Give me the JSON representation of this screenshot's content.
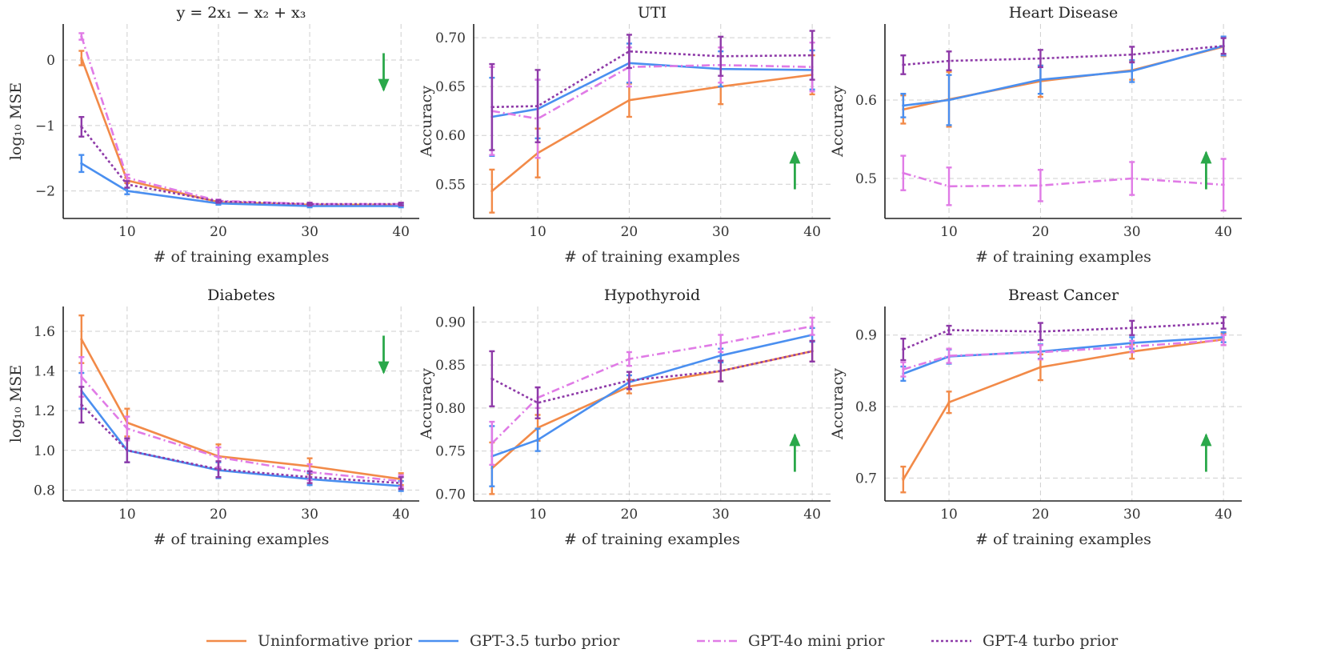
{
  "colors": {
    "uninformative": "#f28a48",
    "gpt35": "#4a8ff0",
    "gpt4omini": "#e07be6",
    "gpt4turbo": "#8e3aa8",
    "arrow": "#2aa84a"
  },
  "legend": [
    {
      "key": "uninformative",
      "label": "Uninformative prior",
      "dash": "solid"
    },
    {
      "key": "gpt35",
      "label": "GPT-3.5 turbo prior",
      "dash": "solid"
    },
    {
      "key": "gpt4omini",
      "label": "GPT-4o mini prior",
      "dash": "dashdot"
    },
    {
      "key": "gpt4turbo",
      "label": "GPT-4 turbo prior",
      "dash": "dotted"
    }
  ],
  "chart_data": [
    {
      "type": "line",
      "title": "y = 2x₁ − x₂ + x₃",
      "xlabel": "# of training examples",
      "ylabel": "log₁₀ MSE",
      "x": [
        5,
        10,
        20,
        30,
        40
      ],
      "xticks": [
        10,
        20,
        30,
        40
      ],
      "xticklabels": [
        "10",
        "20",
        "30",
        "40"
      ],
      "xlim": [
        3,
        42
      ],
      "ylim": [
        -2.42,
        0.55
      ],
      "yticks": [
        0,
        -1,
        -2
      ],
      "yticklabels": [
        "0",
        "−1",
        "−2"
      ],
      "arrow": "down",
      "series": [
        {
          "key": "uninformative",
          "values": [
            0.03,
            -1.84,
            -2.17,
            -2.21,
            -2.21
          ],
          "err": [
            0.11,
            0.04,
            0.02,
            0.02,
            0.02
          ]
        },
        {
          "key": "gpt35",
          "values": [
            -1.58,
            -2.0,
            -2.19,
            -2.23,
            -2.23
          ],
          "err": [
            0.13,
            0.05,
            0.02,
            0.02,
            0.02
          ]
        },
        {
          "key": "gpt4omini",
          "values": [
            0.36,
            -1.8,
            -2.15,
            -2.2,
            -2.2
          ],
          "err": [
            0.05,
            0.05,
            0.02,
            0.02,
            0.02
          ]
        },
        {
          "key": "gpt4turbo",
          "values": [
            -1.02,
            -1.9,
            -2.16,
            -2.2,
            -2.2
          ],
          "err": [
            0.15,
            0.05,
            0.02,
            0.02,
            0.02
          ]
        }
      ]
    },
    {
      "type": "line",
      "title": "UTI",
      "xlabel": "# of training examples",
      "ylabel": "Accuracy",
      "x": [
        5,
        10,
        20,
        30,
        40
      ],
      "xticks": [
        10,
        20,
        30,
        40
      ],
      "xticklabels": [
        "10",
        "20",
        "30",
        "40"
      ],
      "xlim": [
        3,
        42
      ],
      "ylim": [
        0.515,
        0.714
      ],
      "yticks": [
        0.55,
        0.6,
        0.65,
        0.7
      ],
      "yticklabels": [
        "0.55",
        "0.60",
        "0.65",
        "0.70"
      ],
      "arrow": "up",
      "series": [
        {
          "key": "uninformative",
          "values": [
            0.543,
            0.582,
            0.636,
            0.65,
            0.662
          ],
          "err": [
            0.022,
            0.025,
            0.017,
            0.018,
            0.02
          ]
        },
        {
          "key": "gpt35",
          "values": [
            0.619,
            0.627,
            0.674,
            0.668,
            0.667
          ],
          "err": [
            0.04,
            0.03,
            0.02,
            0.018,
            0.02
          ]
        },
        {
          "key": "gpt4omini",
          "values": [
            0.625,
            0.617,
            0.67,
            0.672,
            0.67
          ],
          "err": [
            0.045,
            0.04,
            0.02,
            0.018,
            0.025
          ]
        },
        {
          "key": "gpt4turbo",
          "values": [
            0.629,
            0.63,
            0.686,
            0.681,
            0.682
          ],
          "err": [
            0.044,
            0.037,
            0.017,
            0.02,
            0.025
          ]
        }
      ]
    },
    {
      "type": "line",
      "title": "Heart Disease",
      "xlabel": "# of training examples",
      "ylabel": "Accuracy",
      "x": [
        5,
        10,
        20,
        30,
        40
      ],
      "xticks": [
        10,
        20,
        30,
        40
      ],
      "xticklabels": [
        "10",
        "20",
        "30",
        "40"
      ],
      "xlim": [
        3,
        42
      ],
      "ylim": [
        0.449,
        0.697
      ],
      "yticks": [
        0.5,
        0.6
      ],
      "yticklabels": [
        "0.5",
        "0.6"
      ],
      "arrow": "up",
      "series": [
        {
          "key": "uninformative",
          "values": [
            0.588,
            0.601,
            0.624,
            0.638,
            0.668
          ],
          "err": [
            0.018,
            0.035,
            0.02,
            0.012,
            0.012
          ]
        },
        {
          "key": "gpt35",
          "values": [
            0.593,
            0.6,
            0.626,
            0.637,
            0.669
          ],
          "err": [
            0.015,
            0.032,
            0.018,
            0.014,
            0.012
          ]
        },
        {
          "key": "gpt4omini",
          "values": [
            0.507,
            0.49,
            0.491,
            0.5,
            0.492
          ],
          "err": [
            0.022,
            0.024,
            0.02,
            0.021,
            0.033
          ]
        },
        {
          "key": "gpt4turbo",
          "values": [
            0.645,
            0.65,
            0.653,
            0.658,
            0.669
          ],
          "err": [
            0.012,
            0.012,
            0.011,
            0.01,
            0.01
          ]
        }
      ]
    },
    {
      "type": "line",
      "title": "Diabetes",
      "xlabel": "# of training examples",
      "ylabel": "log₁₀ MSE",
      "x": [
        5,
        10,
        20,
        30,
        40
      ],
      "xticks": [
        10,
        20,
        30,
        40
      ],
      "xticklabels": [
        "10",
        "20",
        "30",
        "40"
      ],
      "xlim": [
        3,
        42
      ],
      "ylim": [
        0.745,
        1.725
      ],
      "yticks": [
        0.8,
        1.0,
        1.2,
        1.4,
        1.6
      ],
      "yticklabels": [
        "0.8",
        "1.0",
        "1.2",
        "1.4",
        "1.6"
      ],
      "arrow": "down",
      "series": [
        {
          "key": "uninformative",
          "values": [
            1.56,
            1.14,
            0.97,
            0.92,
            0.855
          ],
          "err": [
            0.12,
            0.07,
            0.06,
            0.04,
            0.03
          ]
        },
        {
          "key": "gpt35",
          "values": [
            1.3,
            1.0,
            0.9,
            0.855,
            0.82
          ],
          "err": [
            0.09,
            0.06,
            0.04,
            0.03,
            0.025
          ]
        },
        {
          "key": "gpt4omini",
          "values": [
            1.37,
            1.11,
            0.965,
            0.89,
            0.845
          ],
          "err": [
            0.1,
            0.06,
            0.05,
            0.04,
            0.03
          ]
        },
        {
          "key": "gpt4turbo",
          "values": [
            1.23,
            1.0,
            0.905,
            0.865,
            0.835
          ],
          "err": [
            0.09,
            0.06,
            0.04,
            0.03,
            0.03
          ]
        }
      ]
    },
    {
      "type": "line",
      "title": "Hypothyroid",
      "xlabel": "# of training examples",
      "ylabel": "Accuracy",
      "x": [
        5,
        10,
        20,
        30,
        40
      ],
      "xticks": [
        10,
        20,
        30,
        40
      ],
      "xticklabels": [
        "10",
        "20",
        "30",
        "40"
      ],
      "xlim": [
        3,
        42
      ],
      "ylim": [
        0.692,
        0.918
      ],
      "yticks": [
        0.7,
        0.75,
        0.8,
        0.85,
        0.9
      ],
      "yticklabels": [
        "0.70",
        "0.75",
        "0.80",
        "0.85",
        "0.90"
      ],
      "arrow": "up",
      "series": [
        {
          "key": "uninformative",
          "values": [
            0.73,
            0.777,
            0.825,
            0.843,
            0.866
          ],
          "err": [
            0.03,
            0.015,
            0.008,
            0.012,
            0.012
          ]
        },
        {
          "key": "gpt35",
          "values": [
            0.744,
            0.763,
            0.83,
            0.861,
            0.885
          ],
          "err": [
            0.035,
            0.013,
            0.008,
            0.008,
            0.008
          ]
        },
        {
          "key": "gpt4omini",
          "values": [
            0.759,
            0.812,
            0.857,
            0.875,
            0.895
          ],
          "err": [
            0.025,
            0.012,
            0.008,
            0.01,
            0.01
          ]
        },
        {
          "key": "gpt4turbo",
          "values": [
            0.834,
            0.806,
            0.832,
            0.843,
            0.866
          ],
          "err": [
            0.032,
            0.018,
            0.01,
            0.012,
            0.012
          ]
        }
      ]
    },
    {
      "type": "line",
      "title": "Breast Cancer",
      "xlabel": "# of training examples",
      "ylabel": "Accuracy",
      "x": [
        5,
        10,
        20,
        30,
        40
      ],
      "xticks": [
        10,
        20,
        30,
        40
      ],
      "xticklabels": [
        "10",
        "20",
        "30",
        "40"
      ],
      "xlim": [
        3,
        42
      ],
      "ylim": [
        0.668,
        0.94
      ],
      "yticks": [
        0.7,
        0.8,
        0.9
      ],
      "yticklabels": [
        "0.7",
        "0.8",
        "0.9"
      ],
      "arrow": "up",
      "series": [
        {
          "key": "uninformative",
          "values": [
            0.698,
            0.806,
            0.855,
            0.877,
            0.894
          ],
          "err": [
            0.018,
            0.015,
            0.018,
            0.01,
            0.008
          ]
        },
        {
          "key": "gpt35",
          "values": [
            0.846,
            0.87,
            0.877,
            0.889,
            0.897
          ],
          "err": [
            0.01,
            0.01,
            0.01,
            0.008,
            0.007
          ]
        },
        {
          "key": "gpt4omini",
          "values": [
            0.852,
            0.871,
            0.876,
            0.884,
            0.893
          ],
          "err": [
            0.01,
            0.01,
            0.01,
            0.008,
            0.007
          ]
        },
        {
          "key": "gpt4turbo",
          "values": [
            0.88,
            0.907,
            0.905,
            0.91,
            0.917
          ],
          "err": [
            0.015,
            0.006,
            0.012,
            0.01,
            0.008
          ]
        }
      ]
    }
  ]
}
